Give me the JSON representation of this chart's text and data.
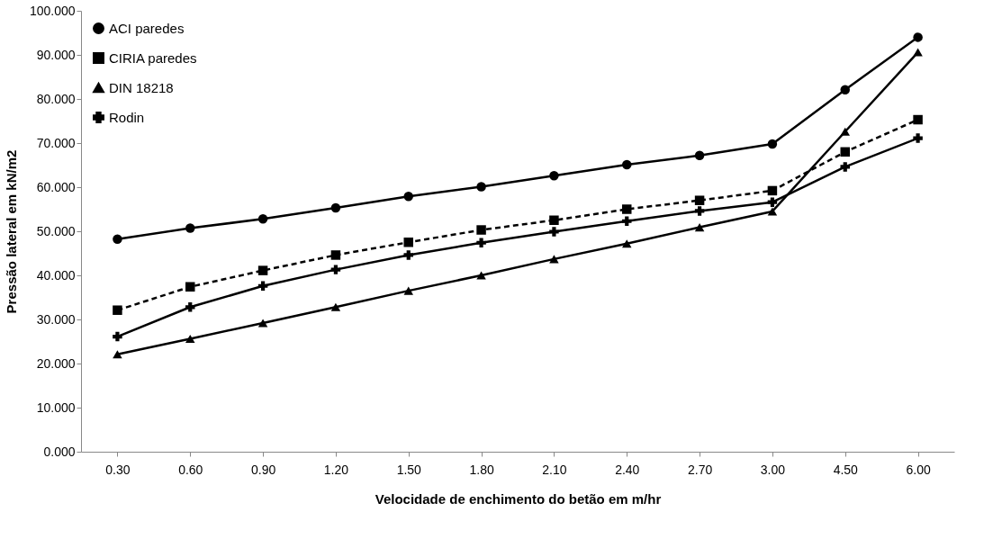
{
  "chart_data": {
    "type": "line",
    "xlabel": "Velocidade de enchimento do betão em m/hr",
    "ylabel": "Pressão lateral em kN/m2",
    "categories": [
      "0.30",
      "0.60",
      "0.90",
      "1.20",
      "1.50",
      "1.80",
      "2.10",
      "2.40",
      "2.70",
      "3.00",
      "4.50",
      "6.00"
    ],
    "ylim": [
      0,
      100
    ],
    "yticks": [
      {
        "value": 0,
        "label": "0.000"
      },
      {
        "value": 10,
        "label": "10.000"
      },
      {
        "value": 20,
        "label": "20.000"
      },
      {
        "value": 30,
        "label": "30.000"
      },
      {
        "value": 40,
        "label": "40.000"
      },
      {
        "value": 50,
        "label": "50.000"
      },
      {
        "value": 60,
        "label": "60.000"
      },
      {
        "value": 70,
        "label": "70.000"
      },
      {
        "value": 80,
        "label": "80.000"
      },
      {
        "value": 90,
        "label": "90.000"
      },
      {
        "value": 100,
        "label": "100.000"
      }
    ],
    "grid": false,
    "legend": "top left",
    "series": [
      {
        "name": "ACI paredes",
        "color": "#000000",
        "marker": "circle",
        "line_style": "solid",
        "values": [
          48.2,
          50.7,
          52.8,
          55.3,
          57.9,
          60.1,
          62.6,
          65.1,
          67.2,
          69.8,
          82.1,
          94.0
        ]
      },
      {
        "name": "CIRIA paredes",
        "color": "#000000",
        "marker": "square",
        "line_style": "dashed",
        "values": [
          32.1,
          37.4,
          41.1,
          44.6,
          47.5,
          50.3,
          52.5,
          55.0,
          57.0,
          59.2,
          68.0,
          75.3
        ]
      },
      {
        "name": "DIN 18218",
        "color": "#000000",
        "marker": "triangle",
        "line_style": "solid",
        "values": [
          22.1,
          25.6,
          29.2,
          32.8,
          36.5,
          40.0,
          43.7,
          47.2,
          50.9,
          54.5,
          72.6,
          90.6
        ]
      },
      {
        "name": "Rodin",
        "color": "#000000",
        "marker": "cross",
        "line_style": "solid",
        "values": [
          26.1,
          32.8,
          37.6,
          41.3,
          44.6,
          47.4,
          49.9,
          52.3,
          54.6,
          56.6,
          64.6,
          71.1
        ]
      }
    ]
  }
}
